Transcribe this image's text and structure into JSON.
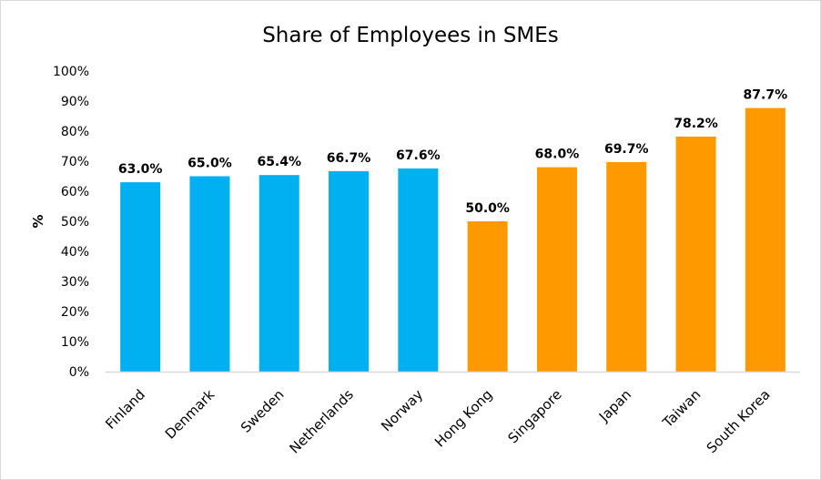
{
  "chart_data": {
    "type": "bar",
    "title": "Share of Employees in SMEs",
    "ylabel": "%",
    "xlabel": "",
    "ylim": [
      0,
      100
    ],
    "yticks": [
      "0%",
      "10%",
      "20%",
      "30%",
      "40%",
      "50%",
      "60%",
      "70%",
      "80%",
      "90%",
      "100%"
    ],
    "grid": false,
    "categories": [
      "Finland",
      "Denmark",
      "Sweden",
      "Netherlands",
      "Norway",
      "Hong Kong",
      "Singapore",
      "Japan",
      "Taiwan",
      "South Korea"
    ],
    "values": [
      63.0,
      65.0,
      65.4,
      66.7,
      67.6,
      50.0,
      68.0,
      69.7,
      78.2,
      87.7
    ],
    "data_labels": [
      "63.0%",
      "65.0%",
      "65.4%",
      "66.7%",
      "67.6%",
      "50.0%",
      "68.0%",
      "69.7%",
      "78.2%",
      "87.7%"
    ],
    "bar_colors": [
      "#00B0F0",
      "#00B0F0",
      "#00B0F0",
      "#00B0F0",
      "#00B0F0",
      "#FF9900",
      "#FF9900",
      "#FF9900",
      "#FF9900",
      "#FF9900"
    ]
  }
}
